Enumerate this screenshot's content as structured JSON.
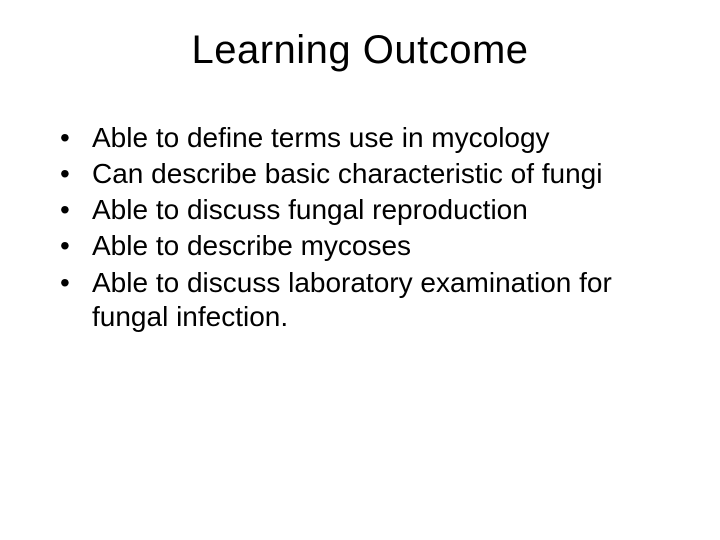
{
  "slide": {
    "title": "Learning Outcome",
    "bullets": [
      "Able to define terms use in mycology",
      "Can describe basic characteristic of fungi",
      "Able to discuss fungal reproduction",
      "Able to describe mycoses",
      "Able to discuss laboratory examination for fungal infection."
    ],
    "style": {
      "background_color": "#ffffff",
      "text_color": "#000000",
      "title_fontsize": 40,
      "title_fontweight": 400,
      "body_fontsize": 28,
      "font_family": "Arial",
      "bullet_marker": "•"
    }
  }
}
